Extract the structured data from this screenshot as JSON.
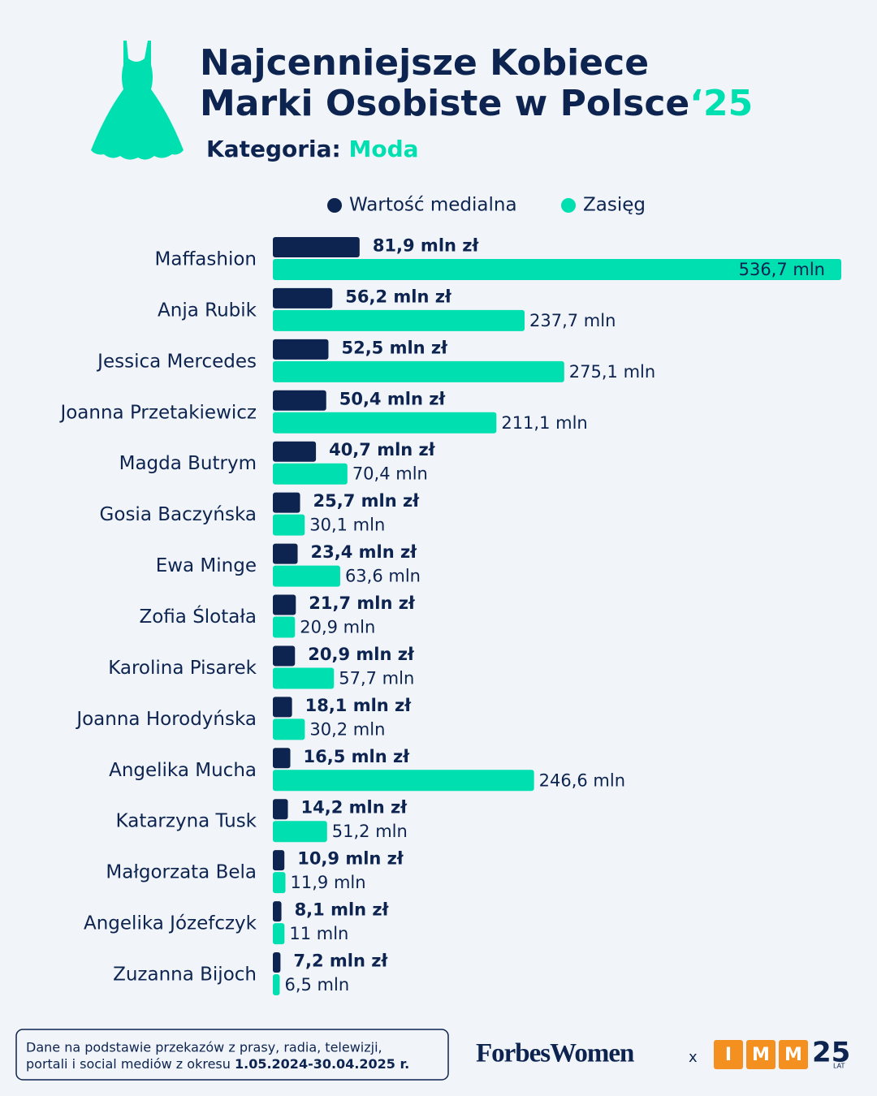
{
  "chart_data": {
    "type": "bar",
    "orientation": "horizontal",
    "title": [
      "Najcenniejsze Kobiece",
      "Marki Osobiste w Polsce"
    ],
    "title_suffix": "‘25",
    "subtitle_label": "Kategoria:",
    "subtitle": "Moda",
    "categories": [
      "Maffashion",
      "Anja Rubik",
      "Jessica Mercedes",
      "Joanna Przetakiewicz",
      "Magda Butrym",
      "Gosia Baczyńska",
      "Ewa Minge",
      "Zofia Ślotała",
      "Karolina Pisarek",
      "Joanna Horodyńska",
      "Angelika Mucha",
      "Katarzyna Tusk",
      "Małgorzata Bela",
      "Angelika Józefczyk",
      "Zuzanna Bijoch"
    ],
    "series": [
      {
        "name": "Wartość medialna",
        "color": "#0d2350",
        "values": [
          81.9,
          56.2,
          52.5,
          50.4,
          40.7,
          25.7,
          23.4,
          21.7,
          20.9,
          18.1,
          16.5,
          14.2,
          10.9,
          8.1,
          7.2
        ],
        "value_labels": [
          "81,9 mln zł",
          "56,2 mln zł",
          "52,5 mln zł",
          "50,4 mln zł",
          "40,7 mln zł",
          "25,7 mln zł",
          "23,4 mln zł",
          "21,7 mln zł",
          "20,9 mln zł",
          "18,1 mln zł",
          "16,5 mln zł",
          "14,2 mln zł",
          "10,9 mln zł",
          "8,1 mln zł",
          "7,2 mln zł"
        ]
      },
      {
        "name": "Zasięg",
        "color": "#00dfb0",
        "values": [
          536.7,
          237.7,
          275.1,
          211.1,
          70.4,
          30.1,
          63.6,
          20.9,
          57.7,
          30.2,
          246.6,
          51.2,
          11.9,
          11,
          6.5
        ],
        "value_labels": [
          "536,7 mln",
          "237,7 mln",
          "275,1 mln",
          "211,1 mln",
          "70,4 mln",
          "30,1 mln",
          "63,6 mln",
          "20,9 mln",
          "57,7 mln",
          "30,2 mln",
          "246,6 mln",
          "51,2 mln",
          "11,9 mln",
          "11 mln",
          "6,5 mln"
        ]
      }
    ],
    "note": [
      "Dane na podstawie przekazów z prasy, radia, telewizji,",
      "portali i social mediów z okresu",
      "1.05.2024-30.04.2025 r."
    ]
  },
  "logos": {
    "forbes": "ForbesWomen",
    "separator": "x",
    "imm": [
      "I",
      "M",
      "M"
    ],
    "anniversary": "25",
    "anniversary_unit": "LAT"
  }
}
